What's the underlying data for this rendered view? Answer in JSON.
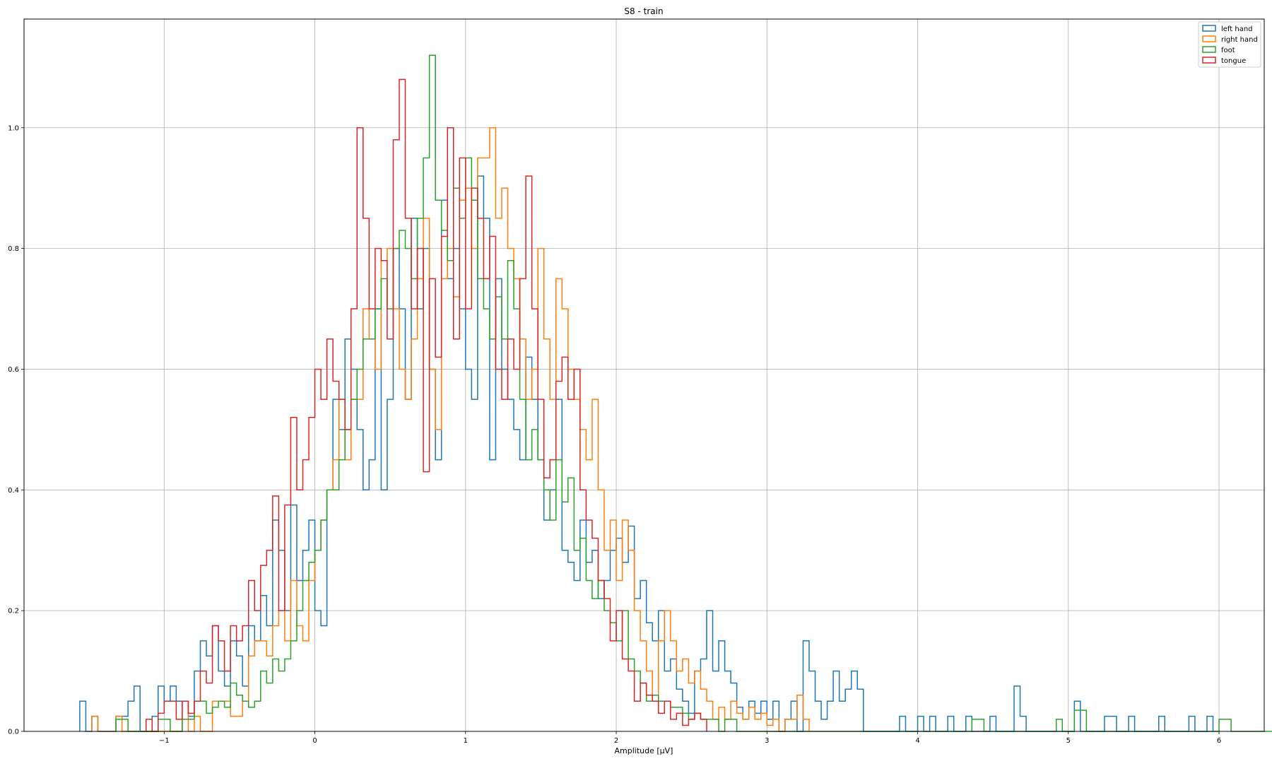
{
  "chart_data": {
    "type": "step-histogram",
    "title": "S8 - train",
    "xlabel": "Amplitude [μV]",
    "ylabel": "",
    "xlim": [
      -1.93,
      6.3
    ],
    "ylim": [
      0,
      1.18
    ],
    "xticks": [
      -1,
      0,
      1,
      2,
      3,
      4,
      5,
      6
    ],
    "xtick_labels": [
      "−1",
      "0",
      "1",
      "2",
      "3",
      "4",
      "5",
      "6"
    ],
    "yticks": [
      0.0,
      0.2,
      0.4,
      0.6,
      0.8,
      1.0
    ],
    "ytick_labels": [
      "0.0",
      "0.2",
      "0.4",
      "0.6",
      "0.8",
      "1.0"
    ],
    "grid": true,
    "legend_position": "top-right",
    "bin_width": 0.04,
    "series": [
      {
        "name": "left hand",
        "color": "#1f77b4",
        "x_start": -1.56,
        "values": [
          0.05,
          0,
          0.025,
          0,
          0,
          0,
          0.025,
          0.025,
          0.05,
          0.075,
          0,
          0,
          0.025,
          0.075,
          0.05,
          0.075,
          0.05,
          0.05,
          0.025,
          0.1,
          0.15,
          0.125,
          0.175,
          0.1,
          0.075,
          0.15,
          0.125,
          0.075,
          0.175,
          0.15,
          0.225,
          0.175,
          0.35,
          0.3,
          0.2,
          0.375,
          0.25,
          0.3,
          0.35,
          0.2,
          0.175,
          0.4,
          0.55,
          0.5,
          0.65,
          0.6,
          0.5,
          0.4,
          0.45,
          0.7,
          0.4,
          0.55,
          0.8,
          0.7,
          0.55,
          0.85,
          0.7,
          0.8,
          0.6,
          0.45,
          0.88,
          0.75,
          0.8,
          0.7,
          0.6,
          0.55,
          0.92,
          0.85,
          0.45,
          0.75,
          0.6,
          0.55,
          0.5,
          0.45,
          0.62,
          0.55,
          0.45,
          0.35,
          0.4,
          0.55,
          0.3,
          0.28,
          0.25,
          0.35,
          0.28,
          0.3,
          0.22,
          0.25,
          0.3,
          0.32,
          0.28,
          0.34,
          0.22,
          0.25,
          0.18,
          0.15,
          0.2,
          0.1,
          0.12,
          0.07,
          0.05,
          0.03,
          0.1,
          0.12,
          0.2,
          0.1,
          0.15,
          0.1,
          0.08,
          0.04,
          0.02,
          0.05,
          0.03,
          0.05,
          0.02,
          0.05,
          0,
          0.02,
          0.05,
          0,
          0.15,
          0.1,
          0.05,
          0.02,
          0.05,
          0.1,
          0.05,
          0.07,
          0.1,
          0.07,
          0,
          0,
          0,
          0,
          0,
          0,
          0.025,
          0,
          0,
          0.025,
          0,
          0.025,
          0,
          0,
          0.025,
          0,
          0,
          0.025,
          0,
          0,
          0,
          0.025,
          0,
          0,
          0,
          0.075,
          0.025,
          0,
          0,
          0,
          0,
          0,
          0,
          0,
          0,
          0.05,
          0,
          0,
          0,
          0,
          0.025,
          0.025,
          0,
          0,
          0.025,
          0,
          0,
          0,
          0,
          0.025,
          0,
          0,
          0,
          0,
          0.025,
          0,
          0,
          0.025
        ]
      },
      {
        "name": "right hand",
        "color": "#ff7f0e",
        "x_start": -1.48,
        "values": [
          0.025,
          0,
          0,
          0,
          0.025,
          0,
          0,
          0,
          0,
          0,
          0,
          0,
          0,
          0,
          0,
          0.05,
          0,
          0.025,
          0,
          0,
          0.05,
          0.05,
          0.05,
          0.025,
          0.025,
          0.05,
          0.125,
          0.15,
          0.15,
          0.125,
          0.175,
          0.2,
          0.15,
          0.25,
          0.175,
          0.15,
          0.25,
          0.3,
          0.35,
          0.4,
          0.45,
          0.55,
          0.45,
          0.55,
          0.55,
          0.7,
          0.65,
          0.6,
          0.78,
          0.8,
          0.7,
          0.6,
          0.55,
          0.65,
          0.75,
          0.85,
          0.6,
          0.5,
          0.75,
          0.8,
          0.72,
          0.88,
          0.9,
          0.8,
          0.95,
          0.95,
          1.0,
          0.85,
          0.9,
          0.8,
          0.75,
          0.65,
          0.55,
          0.6,
          0.8,
          0.65,
          0.55,
          0.75,
          0.7,
          0.6,
          0.55,
          0.5,
          0.45,
          0.55,
          0.4,
          0.3,
          0.35,
          0.25,
          0.35,
          0.3,
          0.2,
          0.15,
          0.1,
          0.06,
          0.15,
          0.2,
          0.15,
          0.1,
          0.12,
          0.08,
          0.1,
          0.07,
          0.05,
          0.02,
          0.04,
          0.02,
          0.05,
          0.03,
          0.02,
          0.04,
          0.02,
          0.03,
          0.01,
          0.02,
          0,
          0.02,
          0.02,
          0.06,
          0.02
        ]
      },
      {
        "name": "foot",
        "color": "#2ca02c",
        "x_start": -1.32,
        "values": [
          0.02,
          0.02,
          0,
          0,
          0,
          0,
          0,
          0.02,
          0.02,
          0,
          0,
          0.02,
          0.02,
          0.05,
          0.05,
          0.03,
          0.04,
          0.05,
          0.04,
          0.08,
          0.06,
          0.05,
          0.04,
          0.05,
          0.1,
          0.08,
          0.12,
          0.1,
          0.12,
          0.15,
          0.2,
          0.25,
          0.28,
          0.3,
          0.35,
          0.4,
          0.4,
          0.45,
          0.5,
          0.55,
          0.6,
          0.65,
          0.65,
          0.7,
          0.75,
          0.7,
          0.8,
          0.83,
          0.8,
          0.75,
          0.85,
          0.95,
          1.12,
          0.88,
          0.83,
          0.78,
          0.9,
          0.85,
          0.95,
          0.88,
          0.75,
          0.7,
          0.65,
          0.72,
          0.65,
          0.78,
          0.7,
          0.55,
          0.45,
          0.5,
          0.45,
          0.4,
          0.35,
          0.45,
          0.38,
          0.42,
          0.3,
          0.32,
          0.25,
          0.22,
          0.25,
          0.2,
          0.18,
          0.15,
          0.2,
          0.12,
          0.1,
          0.08,
          0.05,
          0.06,
          0.05,
          0.05,
          0.04,
          0.04,
          0.03,
          0.02,
          0.03,
          0.02,
          0.02,
          0.02,
          0,
          0.02,
          0.02,
          0,
          0,
          0,
          0,
          0,
          0,
          0,
          0,
          0,
          0,
          0,
          0,
          0,
          0,
          0,
          0,
          0,
          0,
          0,
          0,
          0,
          0,
          0,
          0,
          0,
          0,
          0,
          0,
          0,
          0,
          0,
          0,
          0,
          0,
          0,
          0,
          0,
          0,
          0,
          0.02,
          0.02,
          0,
          0,
          0,
          0,
          0,
          0,
          0,
          0,
          0,
          0,
          0,
          0,
          0.02,
          0,
          0,
          0.035,
          0.035,
          0,
          0,
          0,
          0,
          0,
          0,
          0,
          0,
          0,
          0,
          0,
          0,
          0,
          0,
          0,
          0,
          0,
          0,
          0,
          0,
          0,
          0,
          0.02,
          0.02,
          0,
          0,
          0,
          0,
          0,
          0,
          0,
          0,
          0,
          0.02,
          0,
          0,
          0,
          0,
          0.02,
          0,
          0,
          0,
          0,
          0,
          0,
          0,
          0,
          0,
          0,
          0,
          0.02,
          0,
          0,
          0,
          0,
          0.02,
          0,
          0,
          0,
          0,
          0,
          0,
          0,
          0,
          0,
          0,
          0,
          0,
          0.02,
          0,
          0,
          0,
          0,
          0.02
        ]
      },
      {
        "name": "tongue",
        "color": "#d62728",
        "x_start": -1.12,
        "values": [
          0.02,
          0,
          0.03,
          0.05,
          0.05,
          0.02,
          0.05,
          0.03,
          0.05,
          0.1,
          0.08,
          0.175,
          0.15,
          0.1,
          0.175,
          0.15,
          0.175,
          0.25,
          0.2,
          0.275,
          0.3,
          0.39,
          0.2,
          0.375,
          0.52,
          0.4,
          0.45,
          0.52,
          0.6,
          0.55,
          0.65,
          0.58,
          0.55,
          0.5,
          0.7,
          1.0,
          0.85,
          0.7,
          0.8,
          0.78,
          0.65,
          0.98,
          1.08,
          0.85,
          0.7,
          0.8,
          0.43,
          0.75,
          0.62,
          0.82,
          1.0,
          0.65,
          0.95,
          0.7,
          0.9,
          0.85,
          0.75,
          0.82,
          0.6,
          0.55,
          0.65,
          0.6,
          0.75,
          0.92,
          0.7,
          0.55,
          0.42,
          0.45,
          0.58,
          0.62,
          0.55,
          0.6,
          0.4,
          0.35,
          0.32,
          0.25,
          0.22,
          0.15,
          0.2,
          0.12,
          0.1,
          0.05,
          0.08,
          0.06,
          0.05,
          0.03,
          0.05,
          0.02,
          0.03,
          0.01,
          0.02,
          0.03,
          0.02
        ]
      }
    ]
  }
}
